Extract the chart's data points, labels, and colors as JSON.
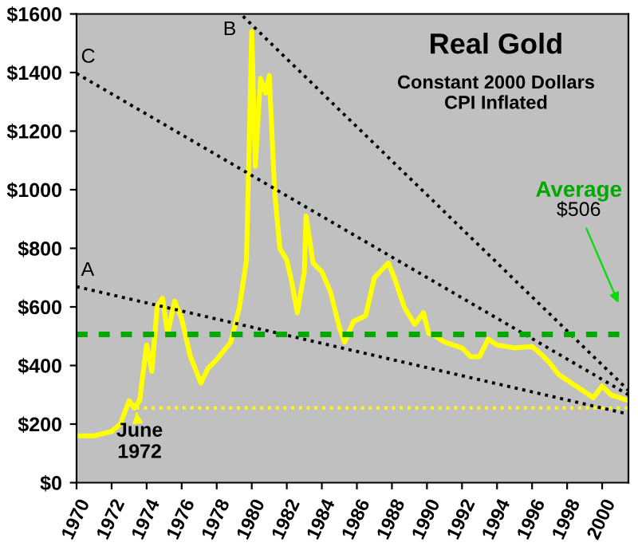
{
  "chart_data": {
    "type": "line",
    "title": "Real Gold",
    "subtitle": "Constant 2000 Dollars\nCPI Inflated",
    "xlim": [
      1970,
      2001.5
    ],
    "xticks": [
      1970,
      1972,
      1974,
      1976,
      1978,
      1980,
      1982,
      1984,
      1986,
      1988,
      1990,
      1992,
      1994,
      1996,
      1998,
      2000
    ],
    "ylim": [
      0,
      1600
    ],
    "yticks": [
      {
        "value": 0,
        "label": "$0"
      },
      {
        "value": 200,
        "label": "$200"
      },
      {
        "value": 400,
        "label": "$400"
      },
      {
        "value": 600,
        "label": "$600"
      },
      {
        "value": 800,
        "label": "$800"
      },
      {
        "value": 1000,
        "label": "$1000"
      },
      {
        "value": 1200,
        "label": "$1200"
      },
      {
        "value": 1400,
        "label": "$1400"
      },
      {
        "value": 1600,
        "label": "$1600"
      }
    ],
    "grid": false,
    "legend": false,
    "marker": "none",
    "series": [
      {
        "color": "#ffff00",
        "line_style": "solid",
        "x": [
          1970,
          1971,
          1972,
          1972.5,
          1973,
          1973.3,
          1973.6,
          1974,
          1974.3,
          1974.6,
          1974.9,
          1975.2,
          1975.6,
          1976,
          1976.5,
          1977.1,
          1977.5,
          1978,
          1978.8,
          1979.3,
          1979.7,
          1980,
          1980.2,
          1980.5,
          1980.8,
          1981,
          1981.3,
          1981.6,
          1982,
          1982.3,
          1982.6,
          1983,
          1983.1,
          1983.5,
          1984,
          1984.5,
          1985,
          1985.3,
          1985.8,
          1986.5,
          1987,
          1987.8,
          1988.2,
          1988.7,
          1989.3,
          1989.8,
          1990.1,
          1990.5,
          1991,
          1991.5,
          1992,
          1992.5,
          1993,
          1993.5,
          1994,
          1995,
          1996,
          1996.5,
          1997,
          1997.5,
          1998,
          1998.5,
          1999,
          1999.5,
          2000,
          2000.5,
          2001,
          2001.5
        ],
        "values": [
          160,
          160,
          175,
          200,
          280,
          255,
          280,
          470,
          380,
          600,
          630,
          510,
          620,
          560,
          430,
          340,
          390,
          420,
          480,
          600,
          760,
          1540,
          1080,
          1380,
          1330,
          1390,
          1000,
          800,
          760,
          680,
          580,
          720,
          910,
          750,
          720,
          650,
          530,
          480,
          550,
          570,
          700,
          750,
          690,
          600,
          540,
          580,
          510,
          500,
          480,
          470,
          460,
          430,
          430,
          490,
          470,
          460,
          465,
          440,
          410,
          370,
          350,
          330,
          310,
          290,
          330,
          300,
          290,
          280
        ]
      },
      {
        "type": "line",
        "color": "#000000",
        "line_style": "dotted",
        "x": [
          1970,
          2001.5
        ],
        "values": [
          669,
          234
        ]
      },
      {
        "type": "line",
        "color": "#000000",
        "line_style": "dotted",
        "x": [
          1979.5,
          2001.5
        ],
        "values": [
          1592,
          315
        ]
      },
      {
        "type": "line",
        "color": "#000000",
        "line_style": "dotted",
        "x": [
          1970,
          2001.5
        ],
        "values": [
          1397,
          300
        ]
      },
      {
        "type": "line",
        "color": "#ffff00",
        "line_style": "dotted",
        "x": [
          1973.4,
          2001.5
        ],
        "values": [
          255,
          255
        ]
      }
    ],
    "ref_lines": [
      {
        "axis": "y",
        "value": 506,
        "label": "Average",
        "color": "#00a800",
        "line_style": "dashed"
      }
    ],
    "annotations": [
      {
        "text": "A",
        "x": 1970,
        "y": 669
      },
      {
        "text": "B",
        "x": 1979.5,
        "y": 1592
      },
      {
        "text": "C",
        "x": 1970,
        "y": 1397
      },
      {
        "text": "June\n1972",
        "x": 1973.4,
        "y": 255
      },
      "$506"
    ]
  }
}
